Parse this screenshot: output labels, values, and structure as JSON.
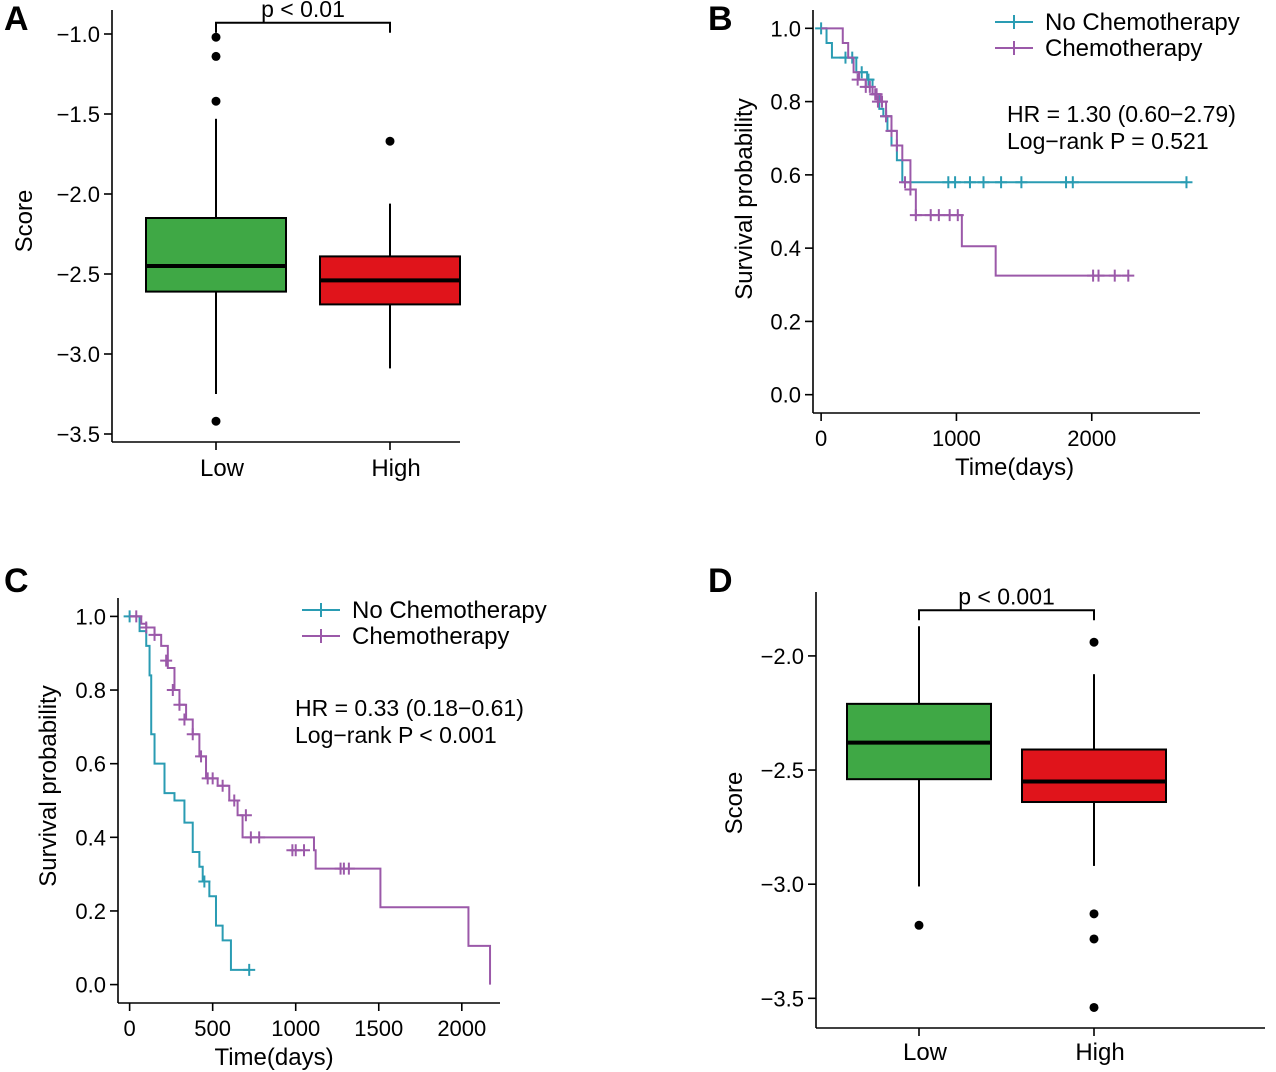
{
  "chart_data": [
    {
      "panel": "A",
      "type": "box",
      "ylabel": "Score",
      "xlabel": "",
      "ylim": [
        -3.55,
        -0.85
      ],
      "yticks": [
        -1.0,
        -1.5,
        -2.0,
        -2.5,
        -3.0,
        -3.5
      ],
      "ytick_labels": [
        "−1.0",
        "−1.5",
        "−2.0",
        "−2.5",
        "−3.0",
        "−3.5"
      ],
      "categories": [
        "Low",
        "High"
      ],
      "boxes": [
        {
          "name": "Low",
          "color": "#3fa845",
          "q1": -2.61,
          "median": -2.45,
          "q3": -2.15,
          "whisker_low": -3.25,
          "whisker_high": -1.53,
          "outliers": [
            -1.02,
            -1.14,
            -1.42,
            -3.42
          ]
        },
        {
          "name": "High",
          "color": "#e0141b",
          "q1": -2.69,
          "median": -2.54,
          "q3": -2.39,
          "whisker_low": -3.09,
          "whisker_high": -2.06,
          "outliers": [
            -1.67
          ]
        }
      ],
      "annotation": "p < 0.01"
    },
    {
      "panel": "B",
      "type": "line",
      "ylabel": "Survival probability",
      "xlabel": "Time(days)",
      "xlim": [
        -60,
        2800
      ],
      "ylim": [
        -0.05,
        1.05
      ],
      "xticks": [
        0,
        1000,
        2000
      ],
      "yticks": [
        0.0,
        0.2,
        0.4,
        0.6,
        0.8,
        1.0
      ],
      "ytick_labels": [
        "0.0",
        "0.2",
        "0.4",
        "0.6",
        "0.8",
        "1.0"
      ],
      "annotation": [
        "HR = 1.30 (0.60−2.79)",
        "Log−rank P = 0.521"
      ],
      "legend": "top-right",
      "series": [
        {
          "name": "No Chemotherapy",
          "color": "#2a9cb3",
          "x": [
            0,
            40,
            60,
            80,
            230,
            260,
            290,
            340,
            380,
            430,
            460,
            490,
            520,
            560,
            600,
            2700
          ],
          "y": [
            1.0,
            0.96,
            0.96,
            0.92,
            0.92,
            0.88,
            0.88,
            0.86,
            0.82,
            0.78,
            0.76,
            0.72,
            0.68,
            0.64,
            0.58,
            0.58
          ],
          "censor_x": [
            0,
            180,
            230,
            300,
            350,
            480,
            940,
            990,
            1100,
            1200,
            1330,
            1480,
            1810,
            1860,
            2700
          ],
          "censor_y": [
            1.0,
            0.92,
            0.92,
            0.88,
            0.86,
            0.76,
            0.58,
            0.58,
            0.58,
            0.58,
            0.58,
            0.58,
            0.58,
            0.58,
            0.58
          ]
        },
        {
          "name": "Chemotherapy",
          "color": "#9b59a9",
          "x": [
            0,
            120,
            160,
            200,
            240,
            280,
            330,
            380,
            440,
            480,
            520,
            560,
            600,
            660,
            700,
            1040,
            1290,
            2270
          ],
          "y": [
            1.0,
            1.0,
            0.96,
            0.92,
            0.88,
            0.86,
            0.84,
            0.82,
            0.8,
            0.76,
            0.72,
            0.68,
            0.64,
            0.56,
            0.49,
            0.405,
            0.325,
            0.325
          ],
          "censor_x": [
            270,
            330,
            360,
            400,
            410,
            420,
            450,
            480,
            520,
            560,
            620,
            660,
            700,
            810,
            870,
            950,
            1010,
            2010,
            2050,
            2170,
            2270
          ],
          "censor_y": [
            0.86,
            0.84,
            0.84,
            0.82,
            0.82,
            0.8,
            0.8,
            0.76,
            0.72,
            0.68,
            0.58,
            0.56,
            0.49,
            0.49,
            0.49,
            0.49,
            0.49,
            0.325,
            0.325,
            0.325,
            0.325
          ]
        }
      ]
    },
    {
      "panel": "C",
      "type": "line",
      "ylabel": "Survival probability",
      "xlabel": "Time(days)",
      "xlim": [
        -70,
        2230
      ],
      "ylim": [
        -0.05,
        1.05
      ],
      "xticks": [
        0,
        500,
        1000,
        1500,
        2000
      ],
      "yticks": [
        0.0,
        0.2,
        0.4,
        0.6,
        0.8,
        1.0
      ],
      "ytick_labels": [
        "0.0",
        "0.2",
        "0.4",
        "0.6",
        "0.8",
        "1.0"
      ],
      "annotation": [
        "HR = 0.33 (0.18−0.61)",
        "Log−rank P < 0.001"
      ],
      "legend": "top-right",
      "series": [
        {
          "name": "No Chemotherapy",
          "color": "#2a9cb3",
          "x": [
            0,
            60,
            100,
            120,
            130,
            150,
            170,
            210,
            270,
            330,
            380,
            420,
            440,
            480,
            520,
            560,
            610,
            720
          ],
          "y": [
            1.0,
            0.96,
            0.92,
            0.84,
            0.68,
            0.6,
            0.6,
            0.52,
            0.5,
            0.44,
            0.36,
            0.32,
            0.28,
            0.24,
            0.16,
            0.12,
            0.04,
            0.04
          ],
          "censor_x": [
            0,
            450,
            720
          ],
          "censor_y": [
            1.0,
            0.28,
            0.04
          ]
        },
        {
          "name": "Chemotherapy",
          "color": "#9b59a9",
          "x": [
            0,
            50,
            70,
            100,
            150,
            190,
            230,
            270,
            300,
            340,
            380,
            420,
            460,
            530,
            600,
            650,
            680,
            720,
            770,
            1110,
            1120,
            1510,
            2040,
            2170
          ],
          "y": [
            1.0,
            1.0,
            0.98,
            0.97,
            0.95,
            0.92,
            0.86,
            0.8,
            0.76,
            0.72,
            0.68,
            0.62,
            0.56,
            0.54,
            0.5,
            0.46,
            0.4,
            0.4,
            0.4,
            0.365,
            0.315,
            0.21,
            0.105,
            0.0
          ],
          "censor_x": [
            40,
            100,
            150,
            220,
            260,
            300,
            330,
            380,
            430,
            470,
            500,
            560,
            630,
            700,
            730,
            780,
            980,
            1000,
            1050,
            1270,
            1290,
            1320
          ],
          "censor_y": [
            1.0,
            0.97,
            0.95,
            0.88,
            0.8,
            0.76,
            0.72,
            0.68,
            0.62,
            0.56,
            0.56,
            0.54,
            0.5,
            0.46,
            0.4,
            0.4,
            0.365,
            0.365,
            0.365,
            0.315,
            0.315,
            0.315
          ]
        }
      ]
    },
    {
      "panel": "D",
      "type": "box",
      "ylabel": "Score",
      "xlabel": "",
      "ylim": [
        -3.63,
        -1.72
      ],
      "yticks": [
        -2.0,
        -2.5,
        -3.0,
        -3.5
      ],
      "ytick_labels": [
        "−2.0",
        "−2.5",
        "−3.0",
        "−3.5"
      ],
      "categories": [
        "Low",
        "High"
      ],
      "boxes": [
        {
          "name": "Low",
          "color": "#3fa845",
          "q1": -2.54,
          "median": -2.38,
          "q3": -2.21,
          "whisker_low": -3.01,
          "whisker_high": -1.87,
          "outliers": [
            -3.18
          ]
        },
        {
          "name": "High",
          "color": "#e0141b",
          "q1": -2.64,
          "median": -2.55,
          "q3": -2.41,
          "whisker_low": -2.92,
          "whisker_high": -2.08,
          "outliers": [
            -1.94,
            -3.13,
            -3.24,
            -3.54
          ]
        }
      ],
      "annotation": "p < 0.001"
    }
  ]
}
